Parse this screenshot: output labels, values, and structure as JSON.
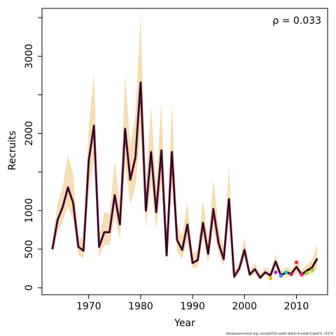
{
  "chart_data": {
    "type": "line",
    "xlabel": "Year",
    "ylabel": "Recruits",
    "annotation": "ρ = 0.033",
    "footer": "stockassessment.org, nscod2015-ass01-dome-6-estall-CobsCV, r5174",
    "xlim": [
      1961,
      2016
    ],
    "ylim": [
      -90,
      3620
    ],
    "x_ticks": [
      1970,
      1980,
      1990,
      2000,
      2010
    ],
    "y_ticks": [
      0,
      500,
      1000,
      2000,
      3000
    ],
    "y_minor_ticks": [
      1500,
      2500,
      3500
    ],
    "colors": {
      "band": "#f5deb3",
      "main_line": "#000000",
      "peel_line": "#8e2a63",
      "peel_points": [
        "#e6b800",
        "#8a2be2",
        "#1e90ff",
        "#00ced1",
        "#cc1a6e",
        "#ff1a1a",
        "#ff1493",
        "#7cfc00",
        "#9acd32",
        "#2f4f8f"
      ]
    },
    "series": [
      {
        "x": [
          1963,
          1964,
          1965,
          1966,
          1967,
          1968,
          1969,
          1970,
          1971,
          1972,
          1973,
          1974,
          1975,
          1976,
          1977,
          1978,
          1979,
          1980,
          1981,
          1982,
          1983,
          1984,
          1985,
          1986,
          1987,
          1988,
          1989,
          1990,
          1991,
          1992,
          1993,
          1994,
          1995,
          1996,
          1997,
          1998,
          1999,
          2000,
          2001,
          2002,
          2003,
          2004,
          2005,
          2006,
          2007,
          2008,
          2009,
          2010,
          2011,
          2012,
          2013,
          2014
        ],
        "values": [
          500,
          880,
          1050,
          1300,
          1100,
          530,
          480,
          1650,
          2100,
          530,
          720,
          720,
          1200,
          820,
          2060,
          1400,
          1690,
          2660,
          1000,
          1760,
          980,
          1780,
          420,
          1760,
          620,
          490,
          820,
          320,
          360,
          840,
          440,
          1020,
          580,
          370,
          1150,
          145,
          250,
          490,
          170,
          240,
          130,
          200,
          160,
          340,
          160,
          200,
          180,
          270,
          170,
          220,
          260,
          380
        ],
        "lower": [
          400,
          720,
          860,
          1050,
          880,
          420,
          380,
          1250,
          1650,
          410,
          550,
          560,
          920,
          620,
          1620,
          1080,
          1310,
          2020,
          780,
          1350,
          750,
          1350,
          310,
          1330,
          470,
          370,
          620,
          250,
          270,
          640,
          330,
          780,
          440,
          280,
          880,
          105,
          190,
          390,
          130,
          185,
          100,
          155,
          120,
          265,
          120,
          155,
          135,
          200,
          125,
          160,
          180,
          240
        ],
        "upper": [
          620,
          1090,
          1310,
          1720,
          1470,
          680,
          610,
          2110,
          2780,
          680,
          980,
          960,
          1650,
          1060,
          2760,
          1830,
          2250,
          3530,
          1330,
          2370,
          1310,
          2420,
          570,
          2400,
          840,
          670,
          1110,
          440,
          490,
          1140,
          600,
          1410,
          800,
          510,
          1570,
          205,
          340,
          640,
          230,
          320,
          175,
          270,
          215,
          440,
          215,
          265,
          245,
          360,
          230,
          300,
          360,
          560
        ]
      }
    ],
    "retro_points": {
      "x": [
        2005,
        2006,
        2007,
        2008,
        2009,
        2010,
        2011,
        2012,
        2013
      ],
      "values": [
        120,
        200,
        155,
        200,
        175,
        330,
        170,
        190,
        230
      ]
    }
  }
}
